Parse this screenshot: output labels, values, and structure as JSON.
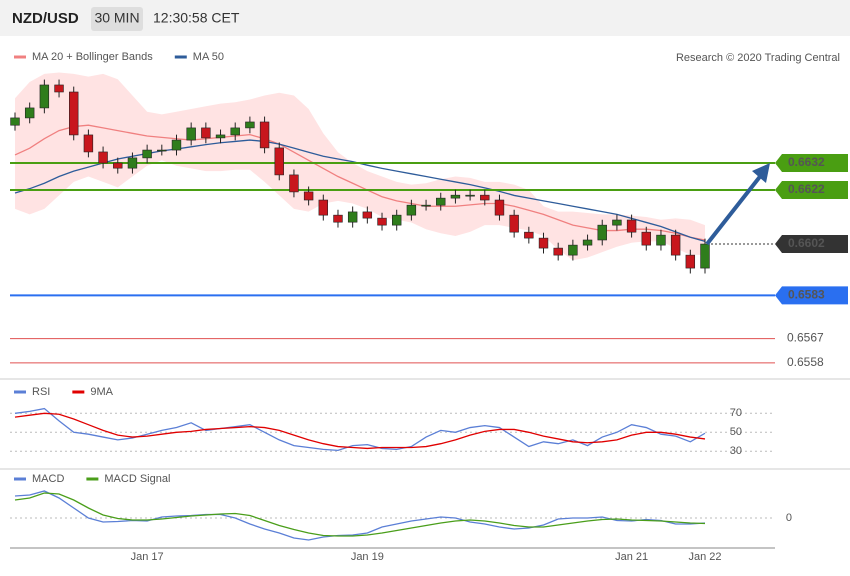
{
  "header": {
    "symbol": "NZD/USD",
    "timeframe": "30 MIN",
    "time": "12:30:58 CET"
  },
  "chart_data": [
    {
      "type": "candlestick",
      "categories": [
        null,
        null,
        null,
        null,
        null,
        null,
        null,
        null,
        null,
        "Jan 17",
        null,
        null,
        null,
        null,
        null,
        null,
        null,
        null,
        null,
        null,
        null,
        null,
        null,
        null,
        "Jan 19",
        null,
        null,
        null,
        null,
        null,
        null,
        null,
        null,
        null,
        null,
        null,
        null,
        null,
        null,
        null,
        null,
        null,
        "Jan 21",
        null,
        null,
        null,
        null,
        "Jan 22"
      ],
      "open": [
        0.6646,
        0.66487,
        0.66524,
        0.66609,
        0.66583,
        0.66424,
        0.66361,
        0.6632,
        0.66301,
        0.66339,
        0.66368,
        0.66368,
        0.66405,
        0.6645,
        0.66413,
        0.66424,
        0.6645,
        0.66472,
        0.66376,
        0.66276,
        0.66213,
        0.66183,
        0.66127,
        0.66101,
        0.66139,
        0.66116,
        0.6609,
        0.66127,
        0.66164,
        0.66164,
        0.6619,
        0.66201,
        0.66201,
        0.66183,
        0.66127,
        0.66064,
        0.66042,
        0.66005,
        0.65979,
        0.66016,
        0.66035,
        0.6609,
        0.66109,
        0.66064,
        0.66016,
        0.66053,
        0.65979,
        0.65931
      ],
      "high": [
        0.66507,
        0.66544,
        0.66629,
        0.66629,
        0.66603,
        0.66444,
        0.66381,
        0.6634,
        0.66359,
        0.66388,
        0.66388,
        0.66425,
        0.6647,
        0.6647,
        0.66444,
        0.6647,
        0.66492,
        0.66492,
        0.66396,
        0.66296,
        0.66233,
        0.66203,
        0.66147,
        0.66159,
        0.66159,
        0.66136,
        0.66147,
        0.66184,
        0.66184,
        0.6621,
        0.66221,
        0.66221,
        0.66221,
        0.66203,
        0.66147,
        0.66084,
        0.66062,
        0.66025,
        0.66036,
        0.66055,
        0.6611,
        0.66129,
        0.66129,
        0.66084,
        0.66073,
        0.66073,
        0.65999,
        0.6604
      ],
      "low": [
        0.6644,
        0.66467,
        0.66504,
        0.66563,
        0.66404,
        0.66341,
        0.663,
        0.66281,
        0.66281,
        0.66319,
        0.66348,
        0.66348,
        0.66385,
        0.66393,
        0.66393,
        0.66404,
        0.6643,
        0.66356,
        0.66256,
        0.66193,
        0.66163,
        0.66107,
        0.66081,
        0.66081,
        0.66096,
        0.6607,
        0.6607,
        0.66107,
        0.66144,
        0.66144,
        0.6617,
        0.66181,
        0.66163,
        0.66107,
        0.66044,
        0.66022,
        0.65985,
        0.65959,
        0.65959,
        0.65996,
        0.66015,
        0.6607,
        0.66044,
        0.65996,
        0.65996,
        0.65959,
        0.65911,
        0.65911
      ],
      "close": [
        0.66487,
        0.66524,
        0.66609,
        0.66583,
        0.66424,
        0.66361,
        0.6632,
        0.66301,
        0.66339,
        0.66368,
        0.66368,
        0.66405,
        0.6645,
        0.66413,
        0.66424,
        0.6645,
        0.66472,
        0.66376,
        0.66276,
        0.66213,
        0.66183,
        0.66127,
        0.66101,
        0.66139,
        0.66116,
        0.6609,
        0.66127,
        0.66164,
        0.66164,
        0.6619,
        0.66201,
        0.66201,
        0.66183,
        0.66127,
        0.66064,
        0.66042,
        0.66005,
        0.65979,
        0.66016,
        0.66035,
        0.6609,
        0.66109,
        0.66064,
        0.66016,
        0.66053,
        0.65979,
        0.65931,
        0.6602
      ],
      "candle_colors": {
        "up": "#2f7d1c",
        "down": "#c8161d"
      },
      "series": [
        {
          "name": "MA 20 + Bollinger Bands",
          "color": "#f08080",
          "values": [
            0.6635,
            0.66375,
            0.6641,
            0.6644,
            0.66455,
            0.6646,
            0.6645,
            0.6644,
            0.6643,
            0.6642,
            0.66415,
            0.6641,
            0.66405,
            0.6641,
            0.66415,
            0.6642,
            0.66425,
            0.6641,
            0.6639,
            0.6636,
            0.6633,
            0.663,
            0.6627,
            0.66245,
            0.6622,
            0.66195,
            0.6618,
            0.6617,
            0.6616,
            0.6616,
            0.6616,
            0.66165,
            0.6617,
            0.6617,
            0.6616,
            0.66145,
            0.6613,
            0.6611,
            0.6609,
            0.6608,
            0.6607,
            0.6607,
            0.66075,
            0.66075,
            0.6607,
            0.6606,
            0.66045,
            0.66035
          ]
        },
        {
          "name": "MA 50",
          "color": "#2e5c9a",
          "values": [
            0.66209,
            0.66225,
            0.66245,
            0.6627,
            0.6629,
            0.66305,
            0.6632,
            0.66335,
            0.66345,
            0.66355,
            0.66365,
            0.66372,
            0.6638,
            0.66388,
            0.66395,
            0.664,
            0.66405,
            0.664,
            0.6639,
            0.66375,
            0.6636,
            0.66345,
            0.66335,
            0.66325,
            0.66312,
            0.663,
            0.6629,
            0.6628,
            0.6627,
            0.6626,
            0.6625,
            0.6624,
            0.66228,
            0.66215,
            0.662,
            0.6619,
            0.6618,
            0.6617,
            0.6616,
            0.6615,
            0.6614,
            0.6613,
            0.66115,
            0.661,
            0.66085,
            0.66065,
            0.66045,
            0.6603
          ]
        }
      ],
      "bands": {
        "color": "#ffe3e3",
        "upper": [
          0.6656,
          0.6662,
          0.6665,
          0.66655,
          0.6665,
          0.6664,
          0.6665,
          0.6663,
          0.6657,
          0.6651,
          0.665,
          0.6651,
          0.6652,
          0.6653,
          0.6654,
          0.66545,
          0.66555,
          0.6657,
          0.6658,
          0.6657,
          0.6652,
          0.6643,
          0.6636,
          0.6632,
          0.6629,
          0.6627,
          0.6625,
          0.6624,
          0.66245,
          0.6626,
          0.6627,
          0.66265,
          0.6625,
          0.6625,
          0.6624,
          0.6622,
          0.6616,
          0.6614,
          0.6614,
          0.66135,
          0.6613,
          0.6613,
          0.66125,
          0.6612,
          0.6611,
          0.66115,
          0.6611,
          0.6609
        ],
        "lower": [
          0.6615,
          0.6613,
          0.6615,
          0.662,
          0.6625,
          0.6627,
          0.6625,
          0.6623,
          0.6627,
          0.6631,
          0.6633,
          0.6631,
          0.663,
          0.6629,
          0.6629,
          0.66295,
          0.66295,
          0.6625,
          0.662,
          0.6615,
          0.6614,
          0.6617,
          0.6618,
          0.6617,
          0.6615,
          0.6612,
          0.6611,
          0.661,
          0.66075,
          0.6606,
          0.6605,
          0.66065,
          0.6609,
          0.6609,
          0.6608,
          0.6607,
          0.6605,
          0.66,
          0.6596,
          0.6597,
          0.6599,
          0.6601,
          0.66025,
          0.6603,
          0.6603,
          0.66005,
          0.6598,
          0.6598
        ]
      },
      "levels": [
        {
          "value": 0.6632,
          "color": "#4a9e12",
          "boxed": true
        },
        {
          "value": 0.6622,
          "color": "#4a9e12",
          "boxed": true
        },
        {
          "value": 0.6602,
          "color": "#333333",
          "boxed": true,
          "style": "dotted"
        },
        {
          "value": 0.6583,
          "color": "#2a6ff0",
          "boxed": true
        },
        {
          "value": 0.6567,
          "color": "#e05050",
          "boxed": false
        },
        {
          "value": 0.6558,
          "color": "#e05050",
          "boxed": false
        }
      ],
      "ylim": [
        0.65524,
        0.66894
      ],
      "credit": "Research © 2020 Trading Central"
    },
    {
      "type": "line",
      "series": [
        {
          "name": "RSI",
          "color": "#5b7fd6",
          "values": [
            70,
            72,
            75,
            62,
            50,
            48,
            45,
            42,
            44,
            48,
            52,
            55,
            60,
            52,
            54,
            56,
            58,
            50,
            42,
            36,
            34,
            32,
            31,
            36,
            37,
            33,
            32,
            35,
            45,
            52,
            50,
            55,
            57,
            55,
            45,
            35,
            40,
            38,
            42,
            36,
            45,
            50,
            58,
            55,
            48,
            46,
            40,
            49
          ]
        },
        {
          "name": "9MA",
          "color": "#e00000",
          "values": [
            66,
            68,
            70,
            69,
            64,
            58,
            52,
            47,
            45,
            46,
            48,
            50,
            51,
            53,
            54,
            55,
            56,
            55,
            52,
            47,
            42,
            38,
            35,
            34,
            33,
            34,
            34,
            34,
            35,
            38,
            42,
            47,
            51,
            53,
            53,
            50,
            46,
            43,
            40,
            39,
            40,
            42,
            47,
            50,
            50,
            48,
            45,
            43
          ]
        }
      ],
      "ylim": [
        14,
        84
      ],
      "yticks": [
        30,
        50,
        70
      ]
    },
    {
      "type": "line",
      "series": [
        {
          "name": "MACD",
          "color": "#5b7fd6",
          "values": [
            0.00088,
            0.00092,
            0.00108,
            0.0008,
            0.0004,
            0,
            -0.00016,
            -0.00014,
            -0.0001,
            -0.00012,
            4e-05,
            8e-05,
            0.0001,
            0.00014,
            0.00014,
            0,
            -0.00024,
            -0.00044,
            -0.0006,
            -0.0008,
            -0.00088,
            -0.00076,
            -0.0007,
            -0.00068,
            -0.0006,
            -0.00036,
            -0.00024,
            -0.00012,
            -4e-05,
            4e-05,
            0,
            -0.00016,
            -0.00024,
            -0.00036,
            -0.00044,
            -0.0004,
            -0.00028,
            -4e-05,
            0,
            0,
            4e-05,
            -0.0001,
            -0.00012,
            -6e-05,
            -0.0001,
            -0.00024,
            -0.00024,
            -0.0002
          ]
        },
        {
          "name": "MACD Signal",
          "color": "#4a9e1a",
          "values": [
            0.00072,
            0.0008,
            0.001,
            0.00096,
            0.00072,
            0.0004,
            0.00012,
            -2e-05,
            -8e-05,
            -8e-05,
            -4e-05,
            2e-05,
            8e-05,
            0.00012,
            0.00016,
            0.00018,
            0.0001,
            -0.0001,
            -0.0003,
            -0.00046,
            -0.0006,
            -0.0007,
            -0.00072,
            -0.00072,
            -0.00068,
            -0.0006,
            -0.0005,
            -0.0004,
            -0.0003,
            -0.0002,
            -0.00012,
            -8e-05,
            -0.00012,
            -0.0002,
            -0.0003,
            -0.00036,
            -0.00036,
            -0.00028,
            -0.0002,
            -0.00012,
            -6e-05,
            -4e-05,
            -8e-05,
            -0.0001,
            -0.00012,
            -0.00016,
            -0.0002,
            -0.00022
          ]
        }
      ],
      "ylim": [
        -0.0012,
        0.0016
      ],
      "yticks": [
        0
      ]
    }
  ]
}
